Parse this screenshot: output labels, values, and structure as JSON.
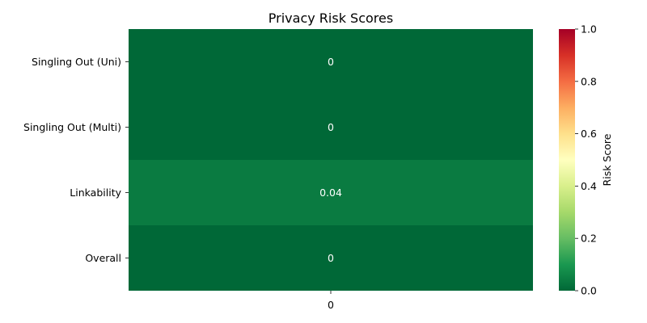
{
  "chart_data": {
    "type": "heatmap",
    "title": "Privacy Risk Scores",
    "rows": [
      "Singling Out (Uni)",
      "Singling Out (Multi)",
      "Linkability",
      "Overall"
    ],
    "columns": [
      "0"
    ],
    "values": [
      [
        0
      ],
      [
        0
      ],
      [
        0.04
      ],
      [
        0
      ]
    ],
    "cell_labels": [
      "0",
      "0",
      "0.04",
      "0"
    ],
    "colorbar": {
      "label": "Risk Score",
      "range": [
        0,
        1
      ],
      "ticks": [
        "0.0",
        "0.2",
        "0.4",
        "0.6",
        "0.8",
        "1.0"
      ],
      "colormap": "RdYlGn_r",
      "color_stops": [
        "#006837",
        "#1a9850",
        "#66bd63",
        "#a6d96a",
        "#d9ef8b",
        "#ffffbf",
        "#fee08b",
        "#fdae61",
        "#f46d43",
        "#d73027",
        "#a50026"
      ]
    },
    "grid": false
  }
}
